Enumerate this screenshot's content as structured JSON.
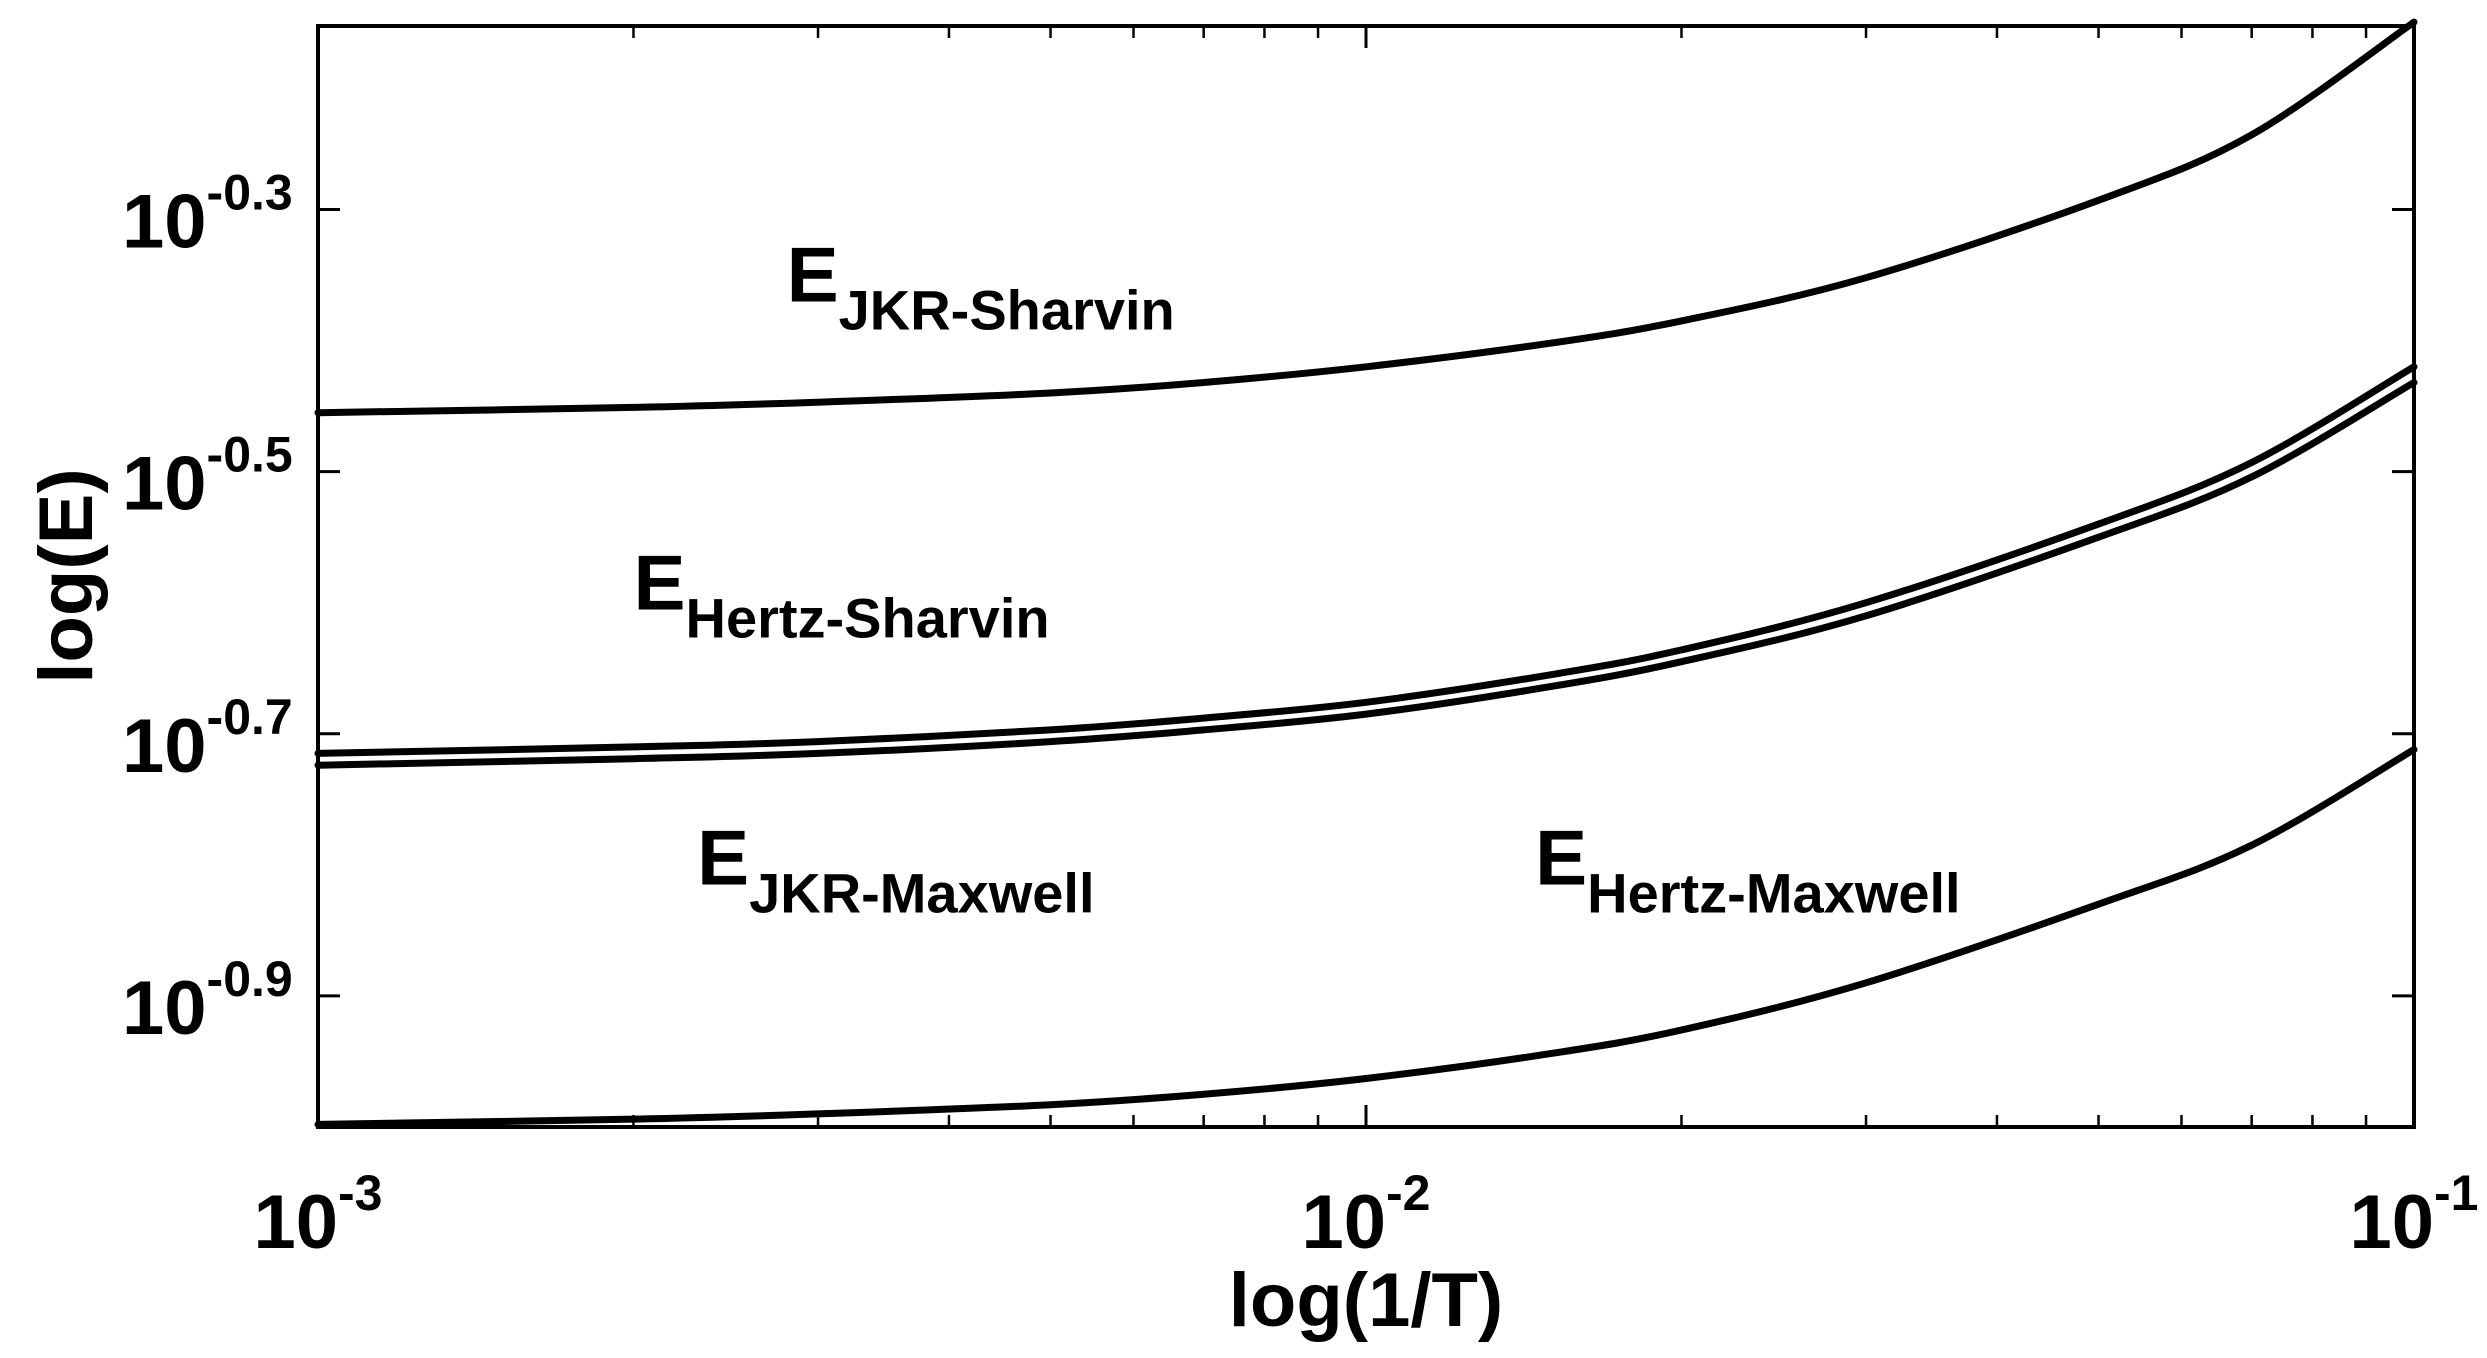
{
  "chart_data": {
    "type": "line",
    "title": "",
    "xlabel": "log(1/T)",
    "ylabel": "log(E)",
    "x_scale": "log",
    "y_scale": "log",
    "xlim": [
      0.001,
      0.1
    ],
    "ylim_log10": [
      -1.0,
      -0.16
    ],
    "grid": false,
    "legend": "none",
    "x_ticks": [
      {
        "base": "10",
        "exp": "-3",
        "value": 0.001
      },
      {
        "base": "10",
        "exp": "-2",
        "value": 0.01
      },
      {
        "base": "10",
        "exp": "-1",
        "value": 0.1
      }
    ],
    "y_ticks": [
      {
        "base": "10",
        "exp": "-0.3",
        "log10": -0.3
      },
      {
        "base": "10",
        "exp": "-0.5",
        "log10": -0.5
      },
      {
        "base": "10",
        "exp": "-0.7",
        "log10": -0.7
      },
      {
        "base": "10",
        "exp": "-0.9",
        "log10": -0.9
      }
    ],
    "annotations": [
      {
        "main": "E",
        "sub": "JKR-Sharvin",
        "x": 0.0028,
        "log10y": -0.37
      },
      {
        "main": "E",
        "sub": "Hertz-Sharvin",
        "x": 0.002,
        "log10y": -0.605
      },
      {
        "main": "E",
        "sub": "JKR-Maxwell",
        "x": 0.0023,
        "log10y": -0.815
      },
      {
        "main": "E",
        "sub": "Hertz-Maxwell",
        "x": 0.0145,
        "log10y": -0.815
      }
    ],
    "series": [
      {
        "x": [
          0.001,
          0.002,
          0.003,
          0.005,
          0.007,
          0.01,
          0.015,
          0.02,
          0.03,
          0.05,
          0.07,
          0.1
        ],
        "log10y": [
          -0.455,
          -0.451,
          -0.447,
          -0.44,
          -0.432,
          -0.42,
          -0.402,
          -0.385,
          -0.352,
          -0.293,
          -0.243,
          -0.157
        ]
      },
      {
        "x": [
          0.001,
          0.002,
          0.003,
          0.005,
          0.007,
          0.01,
          0.015,
          0.02,
          0.03,
          0.05,
          0.07,
          0.1
        ],
        "log10y": [
          -0.715,
          -0.71,
          -0.706,
          -0.697,
          -0.688,
          -0.676,
          -0.655,
          -0.636,
          -0.6,
          -0.54,
          -0.493,
          -0.42
        ]
      },
      {
        "x": [
          0.001,
          0.002,
          0.003,
          0.005,
          0.007,
          0.01,
          0.015,
          0.02,
          0.03,
          0.05,
          0.07,
          0.1
        ],
        "log10y": [
          -0.724,
          -0.719,
          -0.715,
          -0.706,
          -0.697,
          -0.685,
          -0.664,
          -0.645,
          -0.61,
          -0.55,
          -0.504,
          -0.432
        ]
      },
      {
        "x": [
          0.001,
          0.002,
          0.003,
          0.005,
          0.007,
          0.01,
          0.015,
          0.02,
          0.03,
          0.05,
          0.07,
          0.1
        ],
        "log10y": [
          -0.998,
          -0.994,
          -0.99,
          -0.983,
          -0.975,
          -0.963,
          -0.944,
          -0.926,
          -0.89,
          -0.83,
          -0.785,
          -0.712
        ]
      }
    ]
  }
}
